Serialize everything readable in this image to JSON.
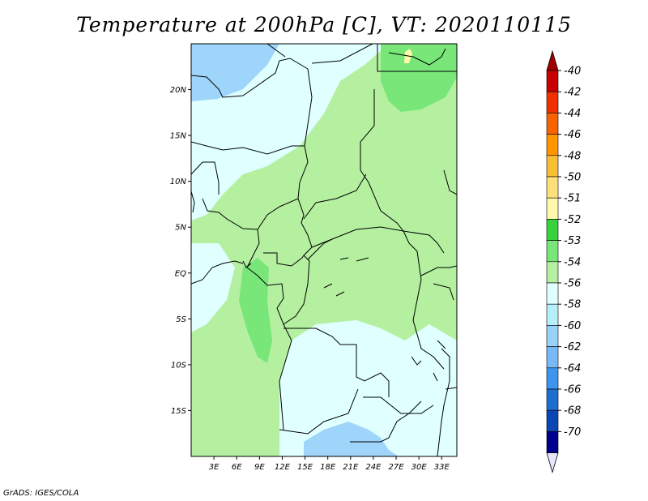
{
  "header": {
    "title": "Temperature at 200hPa [C], VT: 2020110115"
  },
  "footer": {
    "credit": "GrADS: IGES/COLA"
  },
  "map": {
    "lon_range": [
      0,
      35
    ],
    "lat_range": [
      -20,
      25
    ],
    "lon_ticks": [
      "3E",
      "6E",
      "9E",
      "12E",
      "15E",
      "18E",
      "21E",
      "24E",
      "27E",
      "30E",
      "33E"
    ],
    "lon_tick_values": [
      3,
      6,
      9,
      12,
      15,
      18,
      21,
      24,
      27,
      30,
      33
    ],
    "lat_ticks": [
      "20N",
      "15N",
      "10N",
      "5N",
      "EQ",
      "5S",
      "10S",
      "15S"
    ],
    "lat_tick_values": [
      20,
      15,
      10,
      5,
      0,
      -5,
      -10,
      -15
    ],
    "border_color": "#000000",
    "field_colors": {
      "level_-53": "#b4f0a0",
      "level_-54": "#e0ffff",
      "level_-56": "#9fd5fa",
      "level_-52": "#78e678",
      "level_-51": "#fffaaa"
    }
  },
  "colorbar": {
    "labels": [
      "-40",
      "-42",
      "-44",
      "-46",
      "-48",
      "-50",
      "-51",
      "-52",
      "-53",
      "-54",
      "-56",
      "-58",
      "-60",
      "-62",
      "-64",
      "-66",
      "-68",
      "-70"
    ],
    "colors": [
      "#c80000",
      "#f03000",
      "#fa6400",
      "#ff9600",
      "#fabe32",
      "#ffe078",
      "#fffaaa",
      "#37d23c",
      "#78e678",
      "#b4f0a0",
      "#e0ffff",
      "#b4f0fa",
      "#96d2fa",
      "#78b9fa",
      "#3c96f0",
      "#1e6ed2",
      "#0a46b4",
      "#00008c"
    ],
    "top_arrow_color": "#a00000",
    "bottom_arrow_color": "#e6e6fa"
  }
}
